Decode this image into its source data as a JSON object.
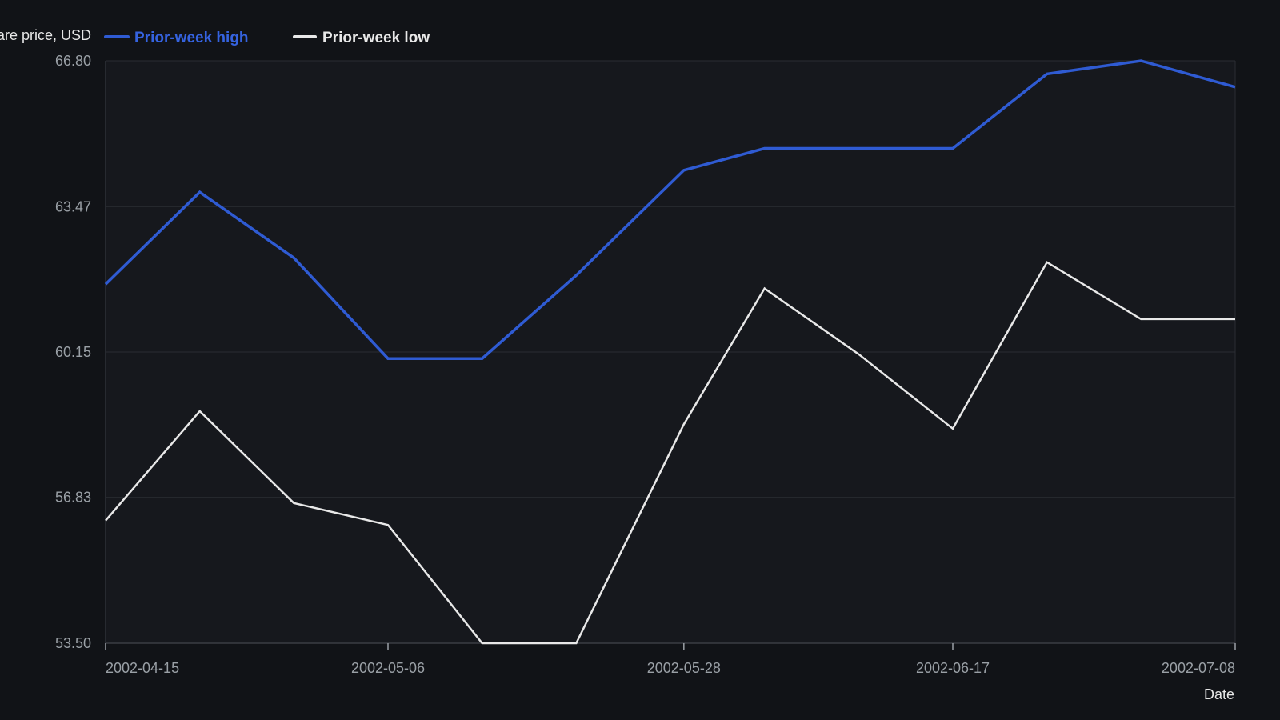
{
  "chart_data": {
    "type": "line",
    "title": "",
    "ylabel": "Share price, USD",
    "xlabel": "Date",
    "ylim": [
      53.5,
      66.8
    ],
    "y_ticks": [
      "53.50",
      "56.83",
      "60.15",
      "63.47",
      "66.80"
    ],
    "x_ticks": [
      "2002-04-15",
      "2002-05-06",
      "2002-05-28",
      "2002-06-17",
      "2002-07-08"
    ],
    "x": [
      "2002-04-15",
      "2002-04-22",
      "2002-04-29",
      "2002-05-06",
      "2002-05-13",
      "2002-05-20",
      "2002-05-28",
      "2002-06-03",
      "2002-06-10",
      "2002-06-17",
      "2002-06-24",
      "2002-07-01",
      "2002-07-08"
    ],
    "series": [
      {
        "name": "Prior-week high",
        "color": "#2f5bd3",
        "values": [
          61.7,
          63.8,
          62.3,
          60.0,
          60.0,
          61.9,
          64.3,
          64.8,
          64.8,
          64.8,
          66.5,
          66.8,
          66.2
        ]
      },
      {
        "name": "Prior-week low",
        "color": "#e8e8e8",
        "values": [
          56.3,
          58.8,
          56.7,
          56.2,
          53.5,
          53.5,
          58.5,
          61.6,
          60.1,
          58.4,
          62.2,
          60.9,
          60.9
        ]
      }
    ],
    "grid": true,
    "legend": "top-left"
  }
}
